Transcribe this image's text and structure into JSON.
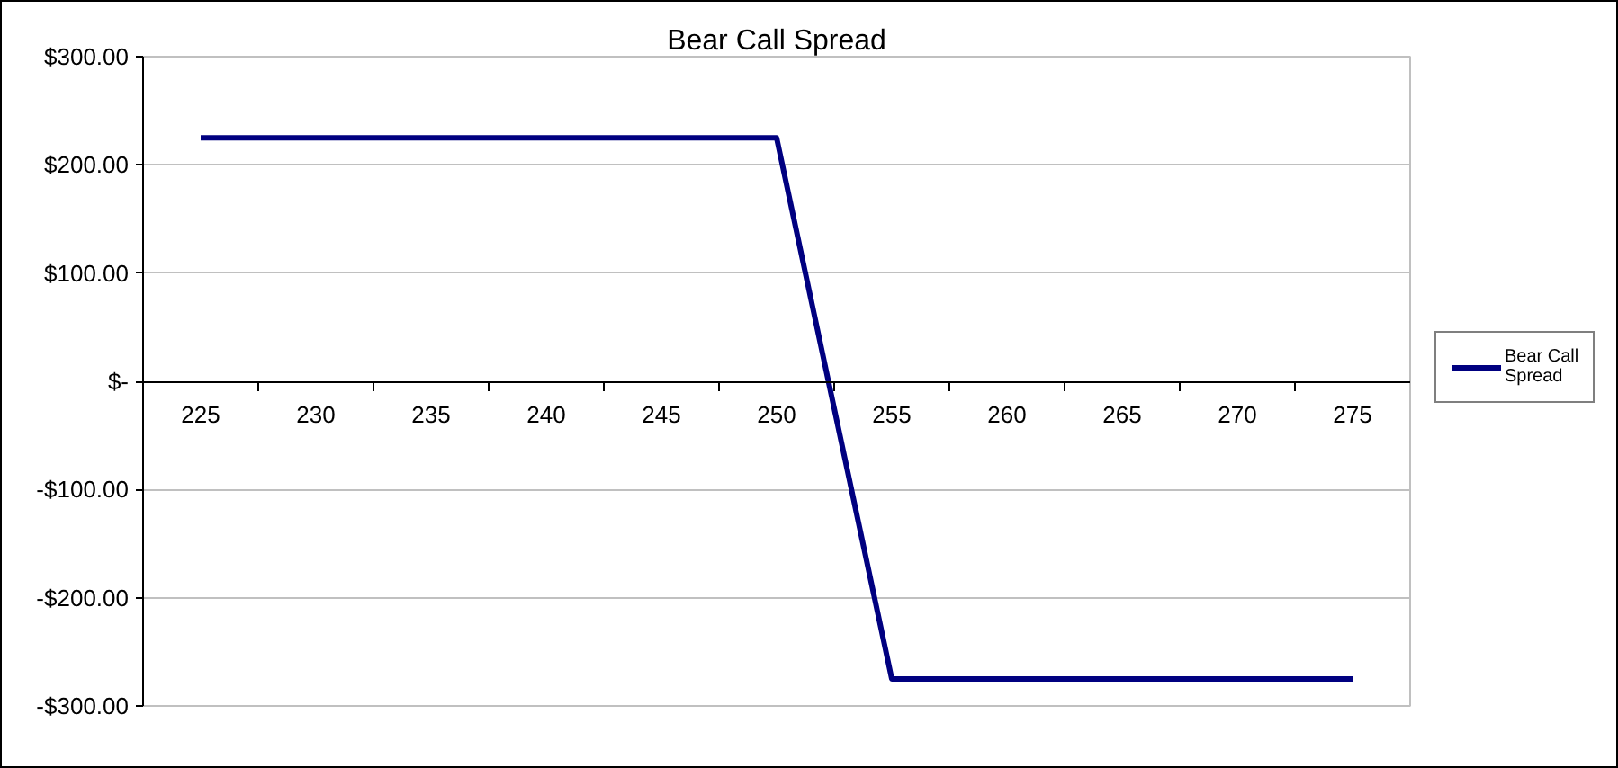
{
  "chart_data": {
    "type": "line",
    "title": "Bear Call Spread",
    "categories": [
      "225",
      "230",
      "235",
      "240",
      "245",
      "250",
      "255",
      "260",
      "265",
      "270",
      "275"
    ],
    "series": [
      {
        "name": "Bear Call Spread",
        "color": "#000080",
        "values": [
          225,
          225,
          225,
          225,
          225,
          225,
          -275,
          -275,
          -275,
          -275,
          -275
        ]
      }
    ],
    "ylim": [
      -300,
      300
    ],
    "yticks": [
      {
        "value": 300,
        "label": "$300.00"
      },
      {
        "value": 200,
        "label": "$200.00"
      },
      {
        "value": 100,
        "label": "$100.00"
      },
      {
        "value": 0,
        "label": "$-"
      },
      {
        "value": -100,
        "label": "-$100.00"
      },
      {
        "value": -200,
        "label": "-$200.00"
      },
      {
        "value": -300,
        "label": "-$300.00"
      }
    ],
    "grid": "y",
    "legend": "right",
    "line_style": "solid"
  }
}
